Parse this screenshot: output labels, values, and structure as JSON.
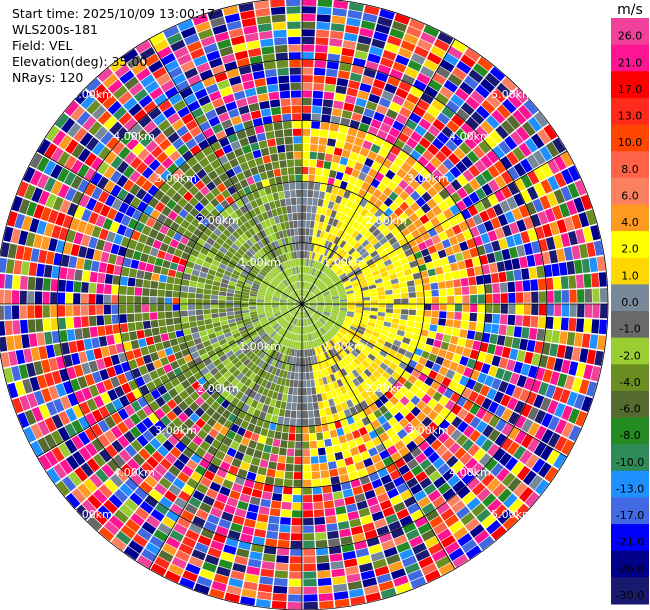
{
  "info": {
    "start_time": "Start time: 2025/10/09 13:00:17",
    "station": "WLS200s-181",
    "field": "Field: VEL",
    "elevation": "Elevation(deg): 35.00",
    "nrays": "NRays: 120"
  },
  "chart_data": {
    "type": "heatmap",
    "subtype": "polar-ppi",
    "field": "VEL",
    "unit": "m/s",
    "n_rays": 120,
    "elevation_deg": 35.0,
    "max_range_km": 5.0,
    "range_rings_km": [
      1.0,
      2.0,
      3.0,
      4.0,
      5.0
    ],
    "range_ring_labels": [
      "1.00km",
      "2.00km",
      "3.00km",
      "4.00km",
      "5.00km"
    ],
    "spokes_deg": [
      0,
      30,
      60,
      90,
      120,
      150,
      180,
      210,
      240,
      270,
      300,
      330
    ],
    "colorbar": {
      "unit_label": "m/s",
      "ticks": [
        "26.0",
        "21.0",
        "17.0",
        "13.0",
        "10.0",
        "8.0",
        "6.0",
        "4.0",
        "2.0",
        "1.0",
        "0.0",
        "-1.0",
        "-2.0",
        "-4.0",
        "-6.0",
        "-8.0",
        "-10.0",
        "-13.0",
        "-17.0",
        "-21.0",
        "-26.0",
        "-30.0"
      ],
      "bins": [
        {
          "min": 26,
          "max": 30,
          "color": "#f1419b"
        },
        {
          "min": 21,
          "max": 26,
          "color": "#ff1493"
        },
        {
          "min": 17,
          "max": 21,
          "color": "#ff0000"
        },
        {
          "min": 13,
          "max": 17,
          "color": "#ff2a1a"
        },
        {
          "min": 10,
          "max": 13,
          "color": "#ff4500"
        },
        {
          "min": 8,
          "max": 10,
          "color": "#ff6347"
        },
        {
          "min": 6,
          "max": 8,
          "color": "#fa8060"
        },
        {
          "min": 4,
          "max": 6,
          "color": "#ff9a20"
        },
        {
          "min": 2,
          "max": 4,
          "color": "#ffff00"
        },
        {
          "min": 1,
          "max": 2,
          "color": "#ffd700"
        },
        {
          "min": 0,
          "max": 1,
          "color": "#778899"
        },
        {
          "min": -1,
          "max": 0,
          "color": "#696969"
        },
        {
          "min": -2,
          "max": -1,
          "color": "#9acd32"
        },
        {
          "min": -4,
          "max": -2,
          "color": "#6b8e23"
        },
        {
          "min": -6,
          "max": -4,
          "color": "#556b2f"
        },
        {
          "min": -8,
          "max": -6,
          "color": "#228b22"
        },
        {
          "min": -10,
          "max": -8,
          "color": "#2e8b57"
        },
        {
          "min": -13,
          "max": -10,
          "color": "#1e90ff"
        },
        {
          "min": -17,
          "max": -13,
          "color": "#4169e1"
        },
        {
          "min": -21,
          "max": -17,
          "color": "#0000ff"
        },
        {
          "min": -26,
          "max": -21,
          "color": "#00008b"
        },
        {
          "min": -30,
          "max": -26,
          "color": "#191970"
        }
      ]
    },
    "velocity_pattern": {
      "inner_core_km": [
        0,
        0.8
      ],
      "inner_core_values": [
        -2,
        -1
      ],
      "ring_band_km": [
        0.8,
        2.0
      ],
      "ring_band_east_values": [
        1,
        4
      ],
      "ring_band_west_values": [
        -4,
        -1
      ],
      "mid_band_km": [
        2.0,
        3.0
      ],
      "mid_band_east_values": [
        2,
        6
      ],
      "mid_band_west_values": [
        -6,
        -2
      ],
      "outer_noise_km": [
        3.0,
        5.0
      ],
      "outer_noise_values": [
        -30,
        30
      ]
    }
  }
}
